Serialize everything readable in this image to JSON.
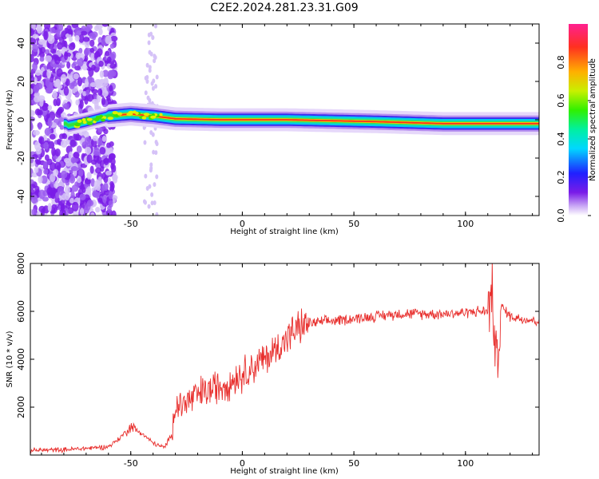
{
  "title": "C2E2.2024.281.23.31.G09",
  "chart_data": [
    {
      "type": "heatmap",
      "xlabel": "Height of straight line (km)",
      "ylabel": "Frequency (Hz)",
      "xlim": [
        -95,
        133
      ],
      "ylim": [
        -50,
        50
      ],
      "xticks": [
        -50,
        0,
        50,
        100
      ],
      "yticks": [
        -40,
        -20,
        0,
        20,
        40
      ],
      "ridge": [
        {
          "x": -78,
          "y": -3
        },
        {
          "x": -70,
          "y": -1
        },
        {
          "x": -60,
          "y": 2
        },
        {
          "x": -50,
          "y": 3
        },
        {
          "x": -40,
          "y": 2
        },
        {
          "x": -30,
          "y": 0.5
        },
        {
          "x": -10,
          "y": 0
        },
        {
          "x": 20,
          "y": 0
        },
        {
          "x": 60,
          "y": -1
        },
        {
          "x": 90,
          "y": -2
        },
        {
          "x": 110,
          "y": -2
        },
        {
          "x": 133,
          "y": -2
        }
      ],
      "colorbar": {
        "label": "Normalized spectral amplitude",
        "range": [
          0,
          1
        ],
        "ticks": [
          "0.0",
          "0.2",
          "0.4",
          "0.6",
          "0.8"
        ]
      }
    },
    {
      "type": "line",
      "xlabel": "Height of straight line (km)",
      "ylabel": "SNR (10 * v/v)",
      "xlim": [
        -95,
        133
      ],
      "ylim": [
        0,
        8000
      ],
      "xticks": [
        -50,
        0,
        50,
        100
      ],
      "yticks": [
        2000,
        4000,
        6000,
        8000
      ],
      "color": "#e8302e",
      "series": [
        {
          "x": [
            -95,
            -80,
            -70,
            -60,
            -55,
            -50,
            -45,
            -40,
            -35,
            -32,
            -30,
            -25,
            -20,
            -15,
            -10,
            -5,
            0,
            5,
            10,
            15,
            20,
            25,
            30,
            40,
            50,
            60,
            70,
            80,
            90,
            100,
            105,
            110,
            112,
            114,
            116,
            120,
            125,
            133
          ],
          "y": [
            200,
            220,
            280,
            350,
            700,
            1200,
            900,
            500,
            300,
            800,
            2000,
            2200,
            2500,
            2700,
            2900,
            3100,
            3400,
            3700,
            4000,
            4400,
            4900,
            5300,
            5500,
            5600,
            5700,
            5800,
            5900,
            5900,
            5900,
            5950,
            6000,
            6000,
            6800,
            3500,
            6200,
            5800,
            5700,
            5600
          ]
        }
      ]
    }
  ]
}
